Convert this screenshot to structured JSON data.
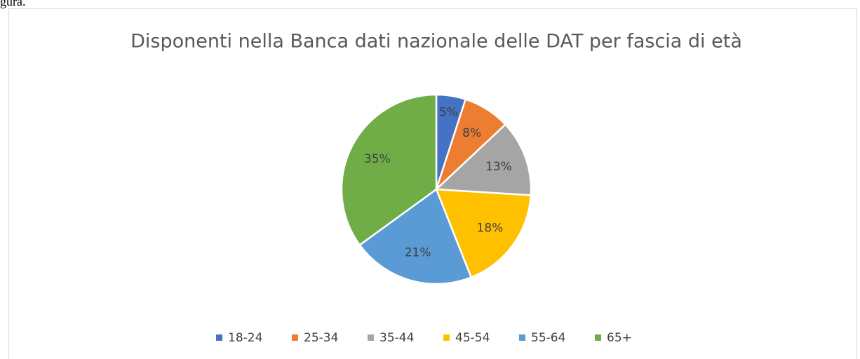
{
  "caption": "gura.",
  "chart_data": {
    "type": "pie",
    "title": "Disponenti nella Banca dati nazionale delle DAT per fascia di età",
    "categories": [
      "18-24",
      "25-34",
      "35-44",
      "45-54",
      "55-64",
      "65+"
    ],
    "values": [
      5,
      8,
      13,
      18,
      21,
      35
    ],
    "value_labels": [
      "5%",
      "8%",
      "13%",
      "18%",
      "21%",
      "35%"
    ],
    "colors": [
      "#4472c4",
      "#ed7d31",
      "#a5a5a5",
      "#ffc000",
      "#5b9bd5",
      "#70ad47"
    ],
    "legend": "bottom"
  }
}
